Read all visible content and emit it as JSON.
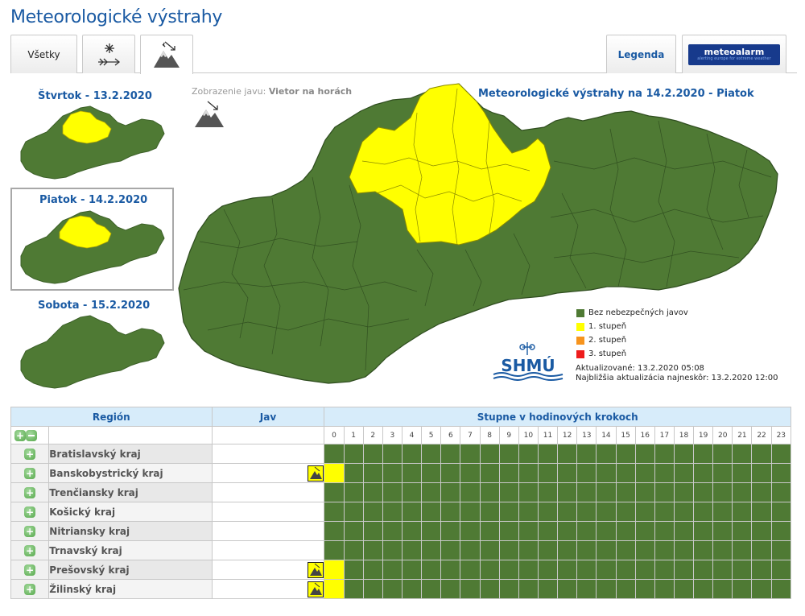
{
  "page": {
    "title": "Meteorologické výstrahy"
  },
  "tabs": {
    "all_label": "Všetky",
    "wind_icon": "snow-wind-icon",
    "mountain_icon": "mountain-wind-icon",
    "legend_label": "Legenda",
    "meteoalarm_label": "meteoalarm",
    "meteoalarm_tagline": "alerting europe for extreme weather"
  },
  "days": [
    {
      "label": "Štvrtok - 13.2.2020"
    },
    {
      "label": "Piatok - 14.2.2020"
    },
    {
      "label": "Sobota - 15.2.2020"
    }
  ],
  "map": {
    "display_prefix": "Zobrazenie javu:",
    "display_value": "Vietor na horách",
    "title": "Meteorologické výstrahy na 14.2.2020 - Piatok",
    "logo_text": "SHMÚ"
  },
  "legend": [
    {
      "label": "Bez nebezpečných javov",
      "color": "#4f7a34"
    },
    {
      "label": "1. stupeň",
      "color": "#ffff00"
    },
    {
      "label": "2. stupeň",
      "color": "#f7941d"
    },
    {
      "label": "3. stupeň",
      "color": "#ee1c1c"
    }
  ],
  "update": {
    "updated": "Aktualizované: 13.2.2020 05:08",
    "next": "Najbližšia aktualizácia najneskôr: 13.2.2020 12:00"
  },
  "table": {
    "col_region": "Región",
    "col_jav": "Jav",
    "col_steps": "Stupne v hodinových krokoch",
    "hours": [
      "0",
      "1",
      "2",
      "3",
      "4",
      "5",
      "6",
      "7",
      "8",
      "9",
      "10",
      "11",
      "12",
      "13",
      "14",
      "15",
      "16",
      "17",
      "18",
      "19",
      "20",
      "21",
      "22",
      "23"
    ],
    "rows": [
      {
        "region": "Bratislavský kraj",
        "warn": false
      },
      {
        "region": "Banskobystrický kraj",
        "warn": true
      },
      {
        "region": "Trenčiansky kraj",
        "warn": false
      },
      {
        "region": "Košický kraj",
        "warn": false
      },
      {
        "region": "Nitriansky kraj",
        "warn": false
      },
      {
        "region": "Trnavský kraj",
        "warn": false
      },
      {
        "region": "Prešovský kraj",
        "warn": true
      },
      {
        "region": "Žilinský kraj",
        "warn": true
      }
    ]
  },
  "colors": {
    "green": "#4f7a34",
    "yellow": "#ffff00",
    "title_blue": "#1a5aa3"
  }
}
